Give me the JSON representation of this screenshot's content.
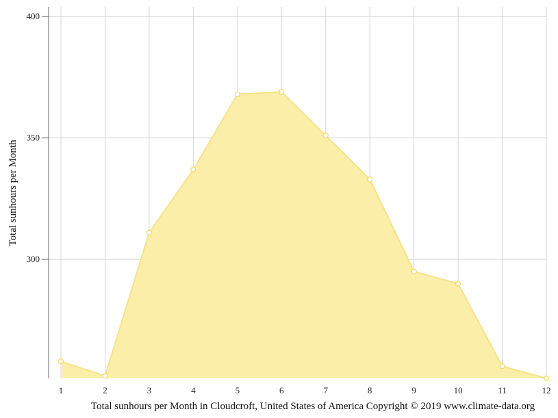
{
  "chart_data": {
    "type": "area",
    "title": "",
    "xlabel": "Total sunhours per Month in Cloudcroft, United States of America Copyright © 2019 www.climate-data.org",
    "ylabel": "Total sunhours per Month",
    "x": [
      1,
      2,
      3,
      4,
      5,
      6,
      7,
      8,
      9,
      10,
      11,
      12
    ],
    "x_tick_labels": [
      "1",
      "2",
      "3",
      "4",
      "5",
      "6",
      "7",
      "8",
      "9",
      "10",
      "11",
      "12"
    ],
    "values": [
      258,
      252,
      311,
      337,
      368,
      369,
      351,
      333,
      295,
      290,
      256,
      251
    ],
    "y_ticks": [
      300,
      350,
      400
    ],
    "y_tick_labels": [
      "300",
      "350",
      "400"
    ],
    "ylim": [
      251,
      404
    ],
    "grid": true,
    "colors": {
      "fill": "#faeea9",
      "line": "#f7e28a",
      "marker_fill": "#ffffff",
      "marker_stroke": "#f2d766",
      "grid": "#d4d4d4",
      "axis": "#666666"
    }
  }
}
